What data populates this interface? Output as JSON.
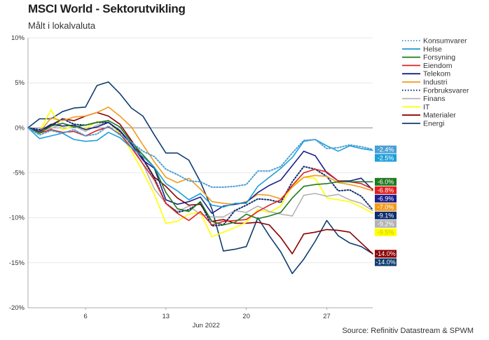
{
  "title": "MSCI World - Sektorutvikling",
  "subtitle": "Målt i lokalvaluta",
  "source": "Source: Refinitiv Datastream & SPWM",
  "chart_data": {
    "type": "line",
    "title": "MSCI World - Sektorutvikling",
    "subtitle": "Målt i lokalvaluta",
    "ylim": [
      -20,
      10
    ],
    "yticks": [
      10,
      5,
      0,
      -5,
      -10,
      -15,
      -20
    ],
    "ytick_labels": [
      "10%",
      "5%",
      "0%",
      "-5%",
      "-10%",
      "-15%",
      "-20%"
    ],
    "x_range": [
      1,
      31
    ],
    "xticks": [
      6,
      13,
      20,
      27
    ],
    "xtick_labels": [
      "6",
      "13",
      "20",
      "27"
    ],
    "x_month_label": "Jun 2022",
    "x": [
      1,
      2,
      3,
      4,
      5,
      6,
      7,
      8,
      9,
      10,
      11,
      12,
      13,
      14,
      15,
      16,
      17,
      18,
      19,
      20,
      21,
      22,
      23,
      24,
      25,
      26,
      27,
      28,
      29,
      30,
      31
    ],
    "grid": "horizontal",
    "legend_position": "right",
    "series": [
      {
        "name": "Konsumvarer",
        "color": "#4a9fd6",
        "dash": "dot",
        "end_label": "-2.4%",
        "values": [
          0,
          -0.8,
          -0.3,
          -0.6,
          -0.2,
          -0.9,
          -0.7,
          0.2,
          -0.8,
          -1.6,
          -2.6,
          -3.2,
          -4.6,
          -5.2,
          -5.9,
          -6.0,
          -6.6,
          -6.6,
          -6.5,
          -6.3,
          -4.8,
          -4.8,
          -4.3,
          -2.8,
          -1.4,
          -1.3,
          -2.3,
          -2.2,
          -1.9,
          -2.1,
          -2.4
        ]
      },
      {
        "name": "Helse",
        "color": "#1e9fd9",
        "dash": "solid",
        "end_label": "-2.5%",
        "values": [
          0,
          -1.2,
          -0.9,
          -0.6,
          -1.3,
          -1.5,
          -1.4,
          -0.5,
          -1.1,
          -2.2,
          -3.2,
          -4.4,
          -6.2,
          -7.0,
          -8.0,
          -7.3,
          -8.6,
          -8.8,
          -8.4,
          -8.4,
          -6.5,
          -5.5,
          -4.5,
          -3.3,
          -1.5,
          -1.3,
          -2.0,
          -2.6,
          -2.0,
          -2.3,
          -2.5
        ]
      },
      {
        "name": "Forsyning",
        "color": "#1f7a1f",
        "dash": "solid",
        "end_label": "-6.0%",
        "values": [
          0,
          -0.6,
          0.2,
          0.5,
          0.1,
          0.3,
          0.6,
          0.8,
          0.1,
          -1.6,
          -3.0,
          -4.4,
          -7.2,
          -9.0,
          -9.3,
          -8.2,
          -10.4,
          -10.8,
          -10.5,
          -9.6,
          -10.1,
          -9.8,
          -9.4,
          -7.8,
          -6.5,
          -6.3,
          -6.2,
          -6.0,
          -6.0,
          -6.0,
          -6.0
        ]
      },
      {
        "name": "Eiendom",
        "color": "#e02020",
        "dash": "solid",
        "end_label": "-6.8%",
        "values": [
          0,
          -0.6,
          -0.2,
          -0.5,
          -0.4,
          -0.9,
          -0.3,
          0.1,
          -0.7,
          -2.2,
          -4.0,
          -5.8,
          -8.4,
          -9.5,
          -10.3,
          -9.3,
          -10.8,
          -10.4,
          -10.3,
          -10.2,
          -9.3,
          -8.6,
          -8.0,
          -6.4,
          -5.0,
          -4.6,
          -4.9,
          -5.9,
          -6.0,
          -6.2,
          -6.8
        ]
      },
      {
        "name": "Telekom",
        "color": "#1a1f8c",
        "dash": "solid",
        "end_label": "-6.9%",
        "values": [
          0,
          -0.4,
          0.4,
          0.2,
          0.3,
          -0.2,
          0.1,
          0.6,
          -0.3,
          -1.8,
          -3.6,
          -4.5,
          -8.0,
          -8.5,
          -8.2,
          -7.7,
          -9.5,
          -8.7,
          -8.5,
          -8.3,
          -7.2,
          -6.4,
          -5.8,
          -4.2,
          -2.6,
          -3.1,
          -5.0,
          -5.9,
          -5.9,
          -5.6,
          -6.9
        ]
      },
      {
        "name": "Industri",
        "color": "#f39a1c",
        "dash": "solid",
        "end_label": "-7.0%",
        "values": [
          0,
          -0.5,
          1.1,
          0.8,
          1.2,
          1.3,
          1.7,
          2.3,
          1.3,
          0.1,
          -1.9,
          -3.8,
          -5.5,
          -6.1,
          -5.6,
          -6.8,
          -8.2,
          -8.4,
          -8.5,
          -8.2,
          -7.4,
          -7.5,
          -7.9,
          -6.6,
          -5.5,
          -5.3,
          -5.4,
          -6.1,
          -6.3,
          -6.6,
          -7.0
        ]
      },
      {
        "name": "Forbruksvarer",
        "color": "#0e2d6f",
        "dash": "dot",
        "end_label": "-9.1%",
        "values": [
          0,
          -0.2,
          0.2,
          1.0,
          0.4,
          0.3,
          0.6,
          0.6,
          -0.4,
          -1.8,
          -3.5,
          -5.6,
          -8.4,
          -9.4,
          -9.1,
          -8.3,
          -10.9,
          -10.8,
          -9.2,
          -8.6,
          -7.9,
          -8.0,
          -8.3,
          -6.0,
          -4.3,
          -4.6,
          -5.4,
          -7.0,
          -6.9,
          -7.6,
          -9.1
        ]
      },
      {
        "name": "Finans",
        "color": "#b3b3b3",
        "dash": "solid",
        "end_label": "-9.2%",
        "values": [
          0,
          -0.3,
          -0.1,
          0.5,
          0.2,
          -0.4,
          0.3,
          0.6,
          -0.3,
          -2.0,
          -4.0,
          -6.8,
          -8.4,
          -9.3,
          -8.7,
          -9.6,
          -9.9,
          -9.9,
          -9.2,
          -9.4,
          -8.7,
          -9.3,
          -9.6,
          -9.8,
          -7.5,
          -7.3,
          -7.6,
          -7.4,
          -8.0,
          -8.4,
          -9.2
        ]
      },
      {
        "name": "IT",
        "color": "#ffff00",
        "dash": "solid",
        "end_label": "-9.5%",
        "values": [
          0,
          -0.4,
          2.0,
          -0.2,
          0.2,
          -0.1,
          0.7,
          0.6,
          -0.6,
          -2.6,
          -4.9,
          -7.4,
          -10.6,
          -10.4,
          -9.6,
          -9.4,
          -12.1,
          -11.6,
          -11.1,
          -10.5,
          -9.1,
          -9.4,
          -8.7,
          -6.4,
          -5.5,
          -5.6,
          -7.8,
          -8.0,
          -8.2,
          -8.8,
          -9.5
        ]
      },
      {
        "name": "Materialer",
        "color": "#8b0000",
        "dash": "solid",
        "end_label": "-14.0%",
        "values": [
          0,
          -0.5,
          0.3,
          1.0,
          0.8,
          1.3,
          1.7,
          1.3,
          0.4,
          -1.4,
          -3.4,
          -5.5,
          -6.5,
          -7.8,
          -8.6,
          -8.5,
          -10.4,
          -10.2,
          -10.6,
          -10.6,
          -10.5,
          -10.8,
          -12.2,
          -14.0,
          -11.8,
          -11.6,
          -11.3,
          -11.4,
          -11.6,
          -12.8,
          -14.0
        ]
      },
      {
        "name": "Energi",
        "color": "#0f3d6e",
        "dash": "solid",
        "end_label": "-14.0%",
        "values": [
          0,
          1.0,
          1.0,
          1.8,
          2.2,
          2.3,
          4.7,
          5.1,
          3.8,
          2.2,
          1.3,
          -0.8,
          -2.8,
          -2.8,
          -3.6,
          -6.0,
          -9.0,
          -13.7,
          -13.5,
          -13.2,
          -10.0,
          -12.0,
          -13.8,
          -16.2,
          -14.6,
          -12.6,
          -10.3,
          -12.0,
          -12.8,
          -13.2,
          -14.0
        ]
      }
    ]
  }
}
